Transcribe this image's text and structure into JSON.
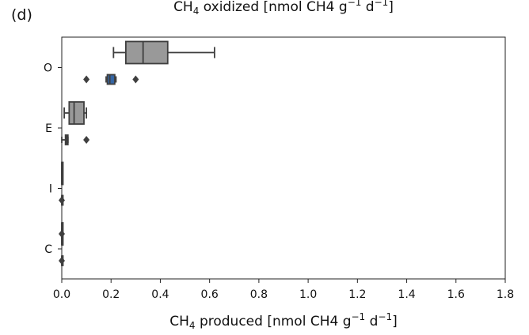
{
  "panel_label": "(d)",
  "chart_data": {
    "type": "boxplot",
    "orientation": "horizontal",
    "title": {
      "pre": "CH",
      "sub": "4",
      "mid": " oxidized [nmol CH4 g",
      "sup1": "−1",
      "mid2": " d",
      "sup2": "−1",
      "post": "]"
    },
    "xlabel": {
      "pre": "CH",
      "sub": "4",
      "mid": " produced [nmol CH4 g",
      "sup1": "−1",
      "mid2": " d",
      "sup2": "−1",
      "post": "]"
    },
    "xlim": [
      0.0,
      1.8
    ],
    "xticks": [
      "0.0",
      "0.2",
      "0.4",
      "0.6",
      "0.8",
      "1.0",
      "1.2",
      "1.4",
      "1.6",
      "1.8"
    ],
    "categories": [
      "O",
      "E",
      "I",
      "C"
    ],
    "grid": false,
    "colors": {
      "oxidized": "#999999",
      "produced": "#3465a4",
      "line": "#3f3f3f"
    },
    "series": [
      {
        "role": "oxidized",
        "boxes": [
          {
            "category": "O",
            "whisker_low": 0.21,
            "q1": 0.26,
            "median": 0.33,
            "q3": 0.43,
            "whisker_high": 0.62,
            "outliers": []
          },
          {
            "category": "E",
            "whisker_low": 0.01,
            "q1": 0.03,
            "median": 0.05,
            "q3": 0.09,
            "whisker_high": 0.1,
            "outliers": []
          },
          {
            "category": "I",
            "whisker_low": 0.0,
            "q1": 0.0,
            "median": 0.0,
            "q3": 0.001,
            "whisker_high": 0.002,
            "outliers": []
          },
          {
            "category": "C",
            "whisker_low": 0.0,
            "q1": 0.0,
            "median": 0.0,
            "q3": 0.0,
            "whisker_high": 0.0,
            "outliers": [
              0.0
            ]
          }
        ]
      },
      {
        "role": "produced",
        "boxes": [
          {
            "category": "O",
            "whisker_low": 0.18,
            "q1": 0.185,
            "median": 0.195,
            "q3": 0.215,
            "whisker_high": 0.22,
            "outliers": [
              0.1,
              0.3
            ]
          },
          {
            "category": "E",
            "whisker_low": 0.0,
            "q1": 0.015,
            "median": 0.02,
            "q3": 0.025,
            "whisker_high": 0.025,
            "outliers": [
              0.1
            ]
          },
          {
            "category": "I",
            "whisker_low": 0.0,
            "q1": 0.0,
            "median": 0.0,
            "q3": 0.0,
            "whisker_high": 0.0,
            "outliers": [
              0.0
            ]
          },
          {
            "category": "C",
            "whisker_low": 0.0,
            "q1": 0.0,
            "median": 0.0,
            "q3": 0.0,
            "whisker_high": 0.0,
            "outliers": [
              0.0
            ]
          }
        ]
      }
    ]
  }
}
